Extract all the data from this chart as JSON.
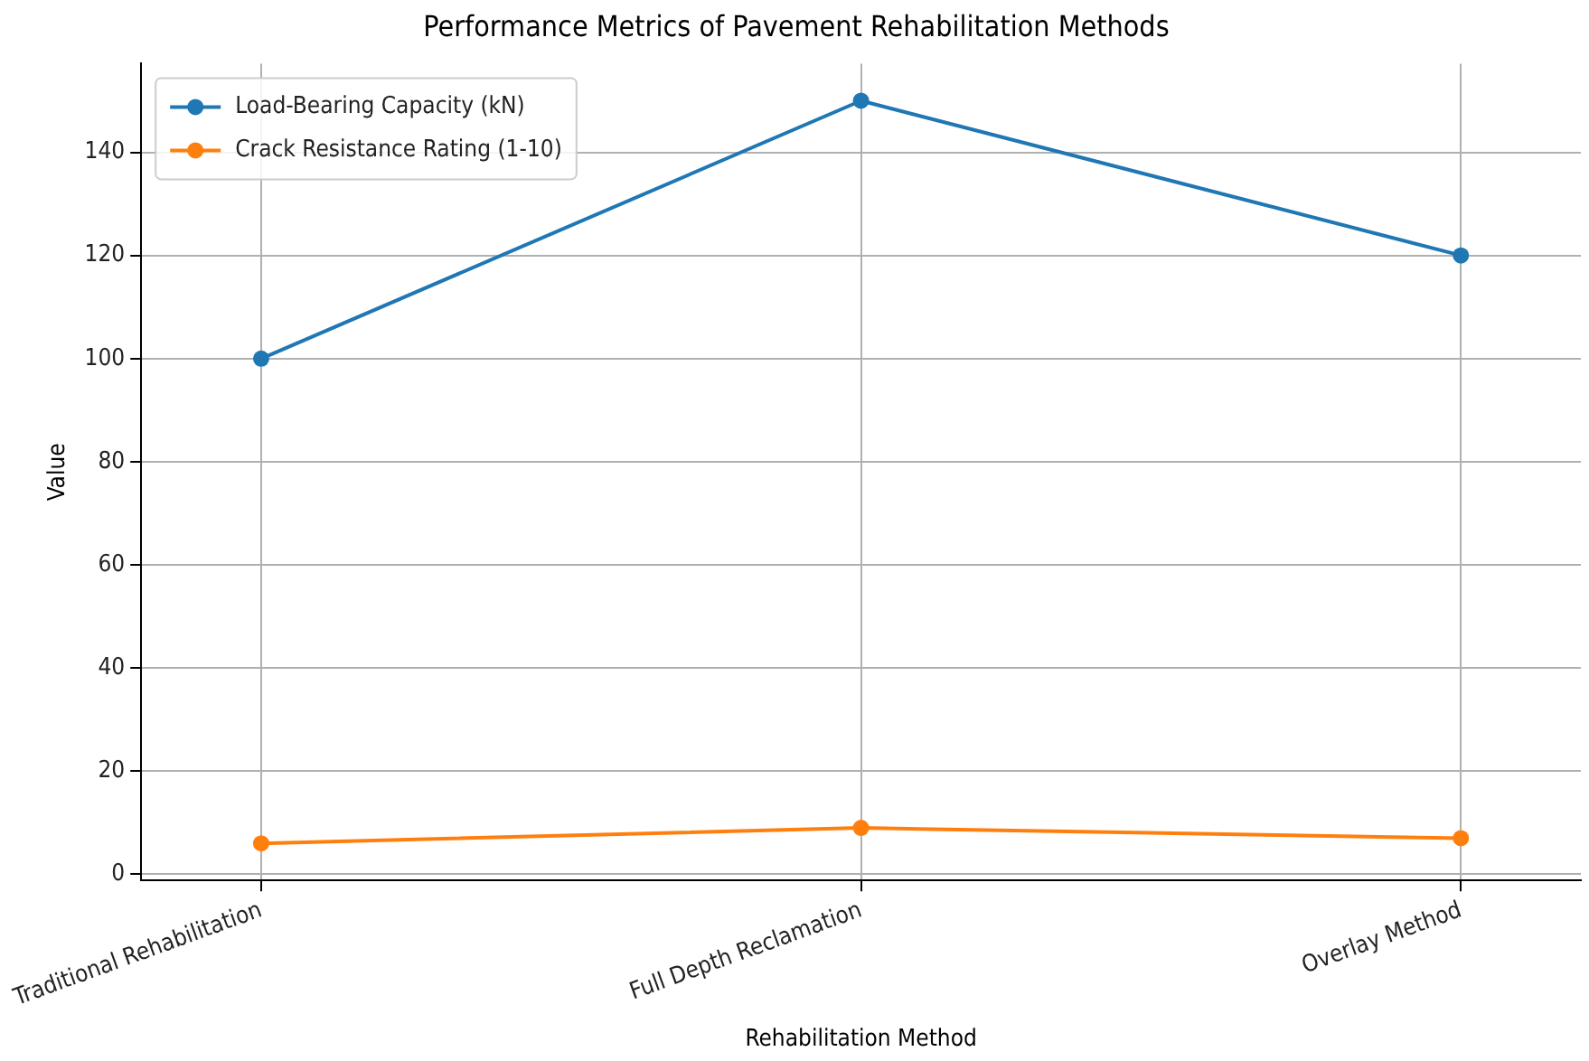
{
  "chart_data": {
    "type": "line",
    "title": "Performance Metrics of Pavement Rehabilitation Methods",
    "xlabel": "Rehabilitation Method",
    "ylabel": "Value",
    "categories": [
      "Traditional Rehabilitation",
      "Full Depth Reclamation",
      "Overlay Method"
    ],
    "series": [
      {
        "name": "Load-Bearing Capacity (kN)",
        "color": "#1f77b4",
        "values": [
          100,
          150,
          120
        ]
      },
      {
        "name": "Crack Resistance Rating (1-10)",
        "color": "#ff7f0e",
        "values": [
          6,
          9,
          7
        ]
      }
    ],
    "ylim": [
      -1.2,
      157.2
    ],
    "yticks": [
      0,
      20,
      40,
      60,
      80,
      100,
      120,
      140
    ],
    "grid": true,
    "legend": "top left",
    "marker": "circle",
    "line_style": "solid"
  }
}
